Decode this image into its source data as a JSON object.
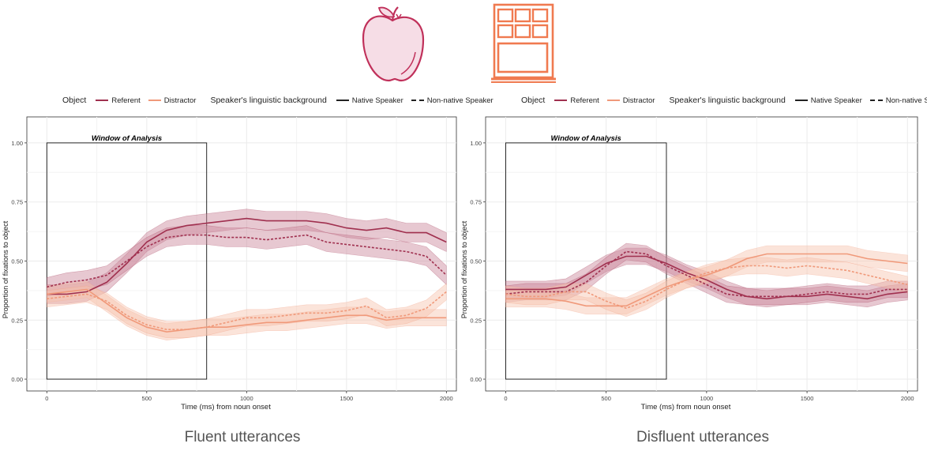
{
  "legend": {
    "object_title": "Object",
    "referent_label": "Referent",
    "distractor_label": "Distractor",
    "speaker_title": "Speaker's linguistic background",
    "native_label": "Native Speaker",
    "nonnative_label": "Non-native Speaker"
  },
  "colors": {
    "referent": "#a0304f",
    "referent_band": "#c9869a",
    "distractor": "#f0997a",
    "distractor_band": "#f7c4ae",
    "apple_icon": "#c0305a",
    "window_icon": "#f07a50"
  },
  "icons": {
    "left": "apple-icon",
    "right": "window-icon"
  },
  "captions": {
    "left": "Fluent utterances",
    "right": "Disfluent utterances"
  },
  "chart_data": [
    {
      "type": "line",
      "title": "",
      "xlabel": "Time (ms) from noun onset",
      "ylabel": "Proportion of fixations to object",
      "xlim": [
        -100,
        2050
      ],
      "ylim": [
        -0.05,
        1.11
      ],
      "xticks": [
        0,
        500,
        1000,
        1500,
        2000
      ],
      "yticks": [
        0.0,
        0.25,
        0.5,
        0.75,
        1.0
      ],
      "ytick_labels": [
        "0.00",
        "0.25",
        "0.50",
        "0.75",
        "1.00"
      ],
      "grid": true,
      "legend_position": "top",
      "annotation": {
        "text": "Window of Analysis",
        "x0": 0,
        "x1": 800,
        "y0": 0,
        "y1": 1
      },
      "x": [
        0,
        100,
        200,
        300,
        400,
        500,
        600,
        700,
        800,
        900,
        1000,
        1100,
        1200,
        1300,
        1400,
        1500,
        1600,
        1700,
        1800,
        1900,
        2000
      ],
      "series": [
        {
          "name": "Referent Native Speaker",
          "object": "Referent",
          "speaker": "Native Speaker",
          "band": 0.04,
          "values": [
            0.36,
            0.36,
            0.37,
            0.41,
            0.49,
            0.58,
            0.63,
            0.65,
            0.66,
            0.67,
            0.68,
            0.67,
            0.67,
            0.67,
            0.66,
            0.64,
            0.63,
            0.64,
            0.62,
            0.62,
            0.58
          ]
        },
        {
          "name": "Referent Non-native Speaker",
          "object": "Referent",
          "speaker": "Non-native Speaker",
          "band": 0.04,
          "values": [
            0.39,
            0.41,
            0.42,
            0.44,
            0.5,
            0.56,
            0.6,
            0.61,
            0.61,
            0.6,
            0.6,
            0.59,
            0.6,
            0.61,
            0.58,
            0.57,
            0.56,
            0.55,
            0.54,
            0.52,
            0.44
          ]
        },
        {
          "name": "Distractor Native Speaker",
          "object": "Distractor",
          "speaker": "Native Speaker",
          "band": 0.035,
          "values": [
            0.36,
            0.37,
            0.38,
            0.32,
            0.26,
            0.22,
            0.2,
            0.21,
            0.22,
            0.22,
            0.23,
            0.24,
            0.24,
            0.25,
            0.26,
            0.27,
            0.27,
            0.25,
            0.26,
            0.26,
            0.26
          ]
        },
        {
          "name": "Distractor Non-native Speaker",
          "object": "Distractor",
          "speaker": "Non-native Speaker",
          "band": 0.035,
          "values": [
            0.34,
            0.35,
            0.36,
            0.33,
            0.27,
            0.23,
            0.21,
            0.21,
            0.22,
            0.24,
            0.26,
            0.26,
            0.27,
            0.28,
            0.28,
            0.29,
            0.31,
            0.26,
            0.27,
            0.3,
            0.37
          ]
        }
      ]
    },
    {
      "type": "line",
      "title": "",
      "xlabel": "Time (ms) from noun onset",
      "ylabel": "Proportion of fixations to object",
      "xlim": [
        -100,
        2050
      ],
      "ylim": [
        -0.05,
        1.11
      ],
      "xticks": [
        0,
        500,
        1000,
        1500,
        2000
      ],
      "yticks": [
        0.0,
        0.25,
        0.5,
        0.75,
        1.0
      ],
      "ytick_labels": [
        "0.00",
        "0.25",
        "0.50",
        "0.75",
        "1.00"
      ],
      "grid": true,
      "legend_position": "top",
      "annotation": {
        "text": "Window of Analysis",
        "x0": 0,
        "x1": 800,
        "y0": 0,
        "y1": 1
      },
      "x": [
        0,
        100,
        200,
        300,
        400,
        500,
        600,
        700,
        800,
        900,
        1000,
        1100,
        1200,
        1300,
        1400,
        1500,
        1600,
        1700,
        1800,
        1900,
        2000
      ],
      "series": [
        {
          "name": "Referent Native Speaker",
          "object": "Referent",
          "speaker": "Native Speaker",
          "band": 0.035,
          "values": [
            0.38,
            0.38,
            0.38,
            0.39,
            0.44,
            0.49,
            0.52,
            0.52,
            0.49,
            0.45,
            0.42,
            0.38,
            0.35,
            0.34,
            0.35,
            0.35,
            0.36,
            0.35,
            0.34,
            0.36,
            0.37
          ]
        },
        {
          "name": "Referent Non-native Speaker",
          "object": "Referent",
          "speaker": "Non-native Speaker",
          "band": 0.035,
          "values": [
            0.36,
            0.37,
            0.37,
            0.37,
            0.41,
            0.48,
            0.54,
            0.53,
            0.48,
            0.44,
            0.4,
            0.36,
            0.35,
            0.35,
            0.35,
            0.36,
            0.37,
            0.36,
            0.36,
            0.38,
            0.38
          ]
        },
        {
          "name": "Distractor Native Speaker",
          "object": "Distractor",
          "speaker": "Native Speaker",
          "band": 0.035,
          "values": [
            0.34,
            0.34,
            0.34,
            0.33,
            0.31,
            0.31,
            0.31,
            0.35,
            0.39,
            0.42,
            0.44,
            0.47,
            0.51,
            0.53,
            0.53,
            0.53,
            0.53,
            0.53,
            0.51,
            0.5,
            0.49
          ]
        },
        {
          "name": "Distractor Non-native Speaker",
          "object": "Distractor",
          "speaker": "Non-native Speaker",
          "band": 0.035,
          "values": [
            0.36,
            0.35,
            0.35,
            0.37,
            0.37,
            0.33,
            0.3,
            0.33,
            0.38,
            0.42,
            0.45,
            0.47,
            0.48,
            0.48,
            0.47,
            0.48,
            0.47,
            0.46,
            0.44,
            0.42,
            0.4
          ]
        }
      ]
    }
  ]
}
